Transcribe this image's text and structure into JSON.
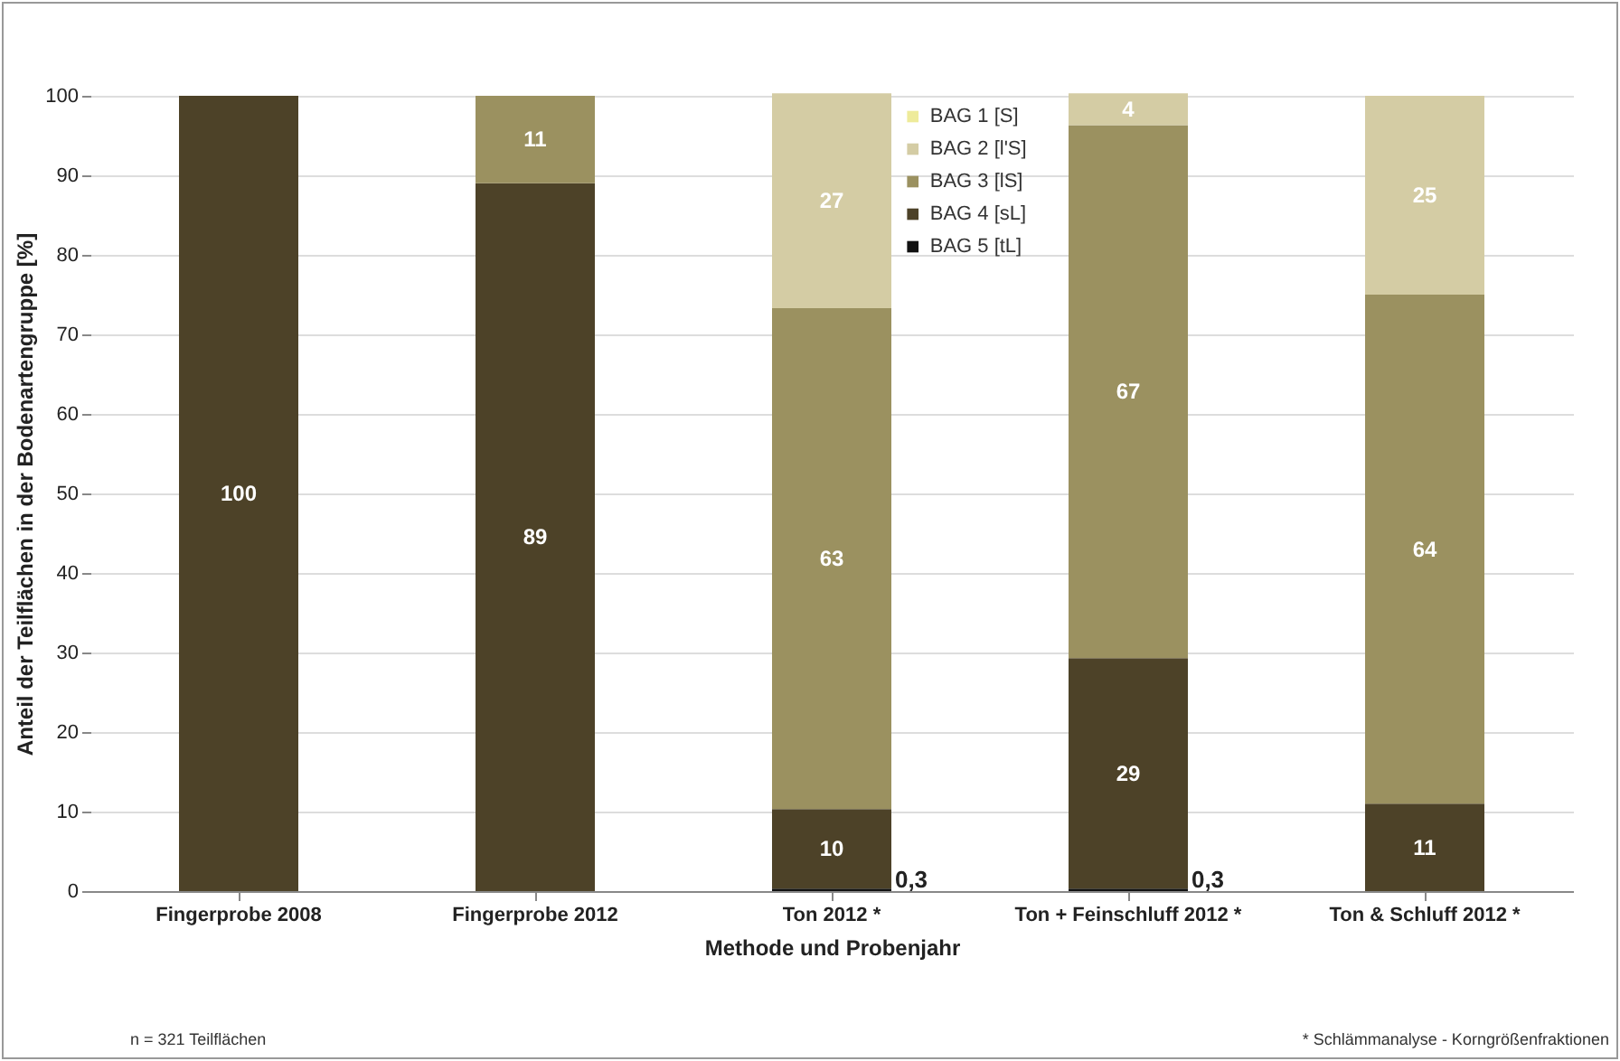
{
  "chart_data": {
    "type": "bar",
    "stacked": true,
    "xlabel": "Methode und Probenjahr",
    "ylabel": "Anteil der Teilflächen in der Bodenartengruppe [%]",
    "categories": [
      "Fingerprobe 2008",
      "Fingerprobe 2012",
      "Ton 2012 *",
      "Ton + Feinschluff 2012 *",
      "Ton & Schluff 2012 *"
    ],
    "series": [
      {
        "name": "BAG 5  [tL]",
        "color": "#111111",
        "values": [
          null,
          null,
          0.3,
          0.3,
          null
        ],
        "value_labels": [
          null,
          null,
          "0,3",
          "0,3",
          null
        ]
      },
      {
        "name": "BAG 4  [sL]",
        "color": "#4d4228",
        "values": [
          100,
          89,
          10,
          29,
          11
        ],
        "value_labels": [
          "100",
          "89",
          "10",
          "29",
          "11"
        ]
      },
      {
        "name": "BAG 3  [lS]",
        "color": "#9b9160",
        "values": [
          null,
          11,
          63,
          67,
          64
        ],
        "value_labels": [
          null,
          "11",
          "63",
          "67",
          "64"
        ]
      },
      {
        "name": "BAG 2  [l'S]",
        "color": "#d4cca4",
        "values": [
          null,
          null,
          27,
          4,
          25
        ],
        "value_labels": [
          null,
          null,
          "27",
          "4",
          "25"
        ]
      },
      {
        "name": "BAG 1  [S]",
        "color": "#eeeb9a",
        "values": [
          null,
          null,
          null,
          null,
          null
        ]
      }
    ],
    "ylim": [
      0,
      100
    ],
    "yticks": [
      0,
      10,
      20,
      30,
      40,
      50,
      60,
      70,
      80,
      90,
      100
    ],
    "grid": "y",
    "legend": "top",
    "annotations": [
      "n = 321 Teilflächen",
      "* Schlämmanalyse - Korngrößenfraktionen"
    ]
  }
}
